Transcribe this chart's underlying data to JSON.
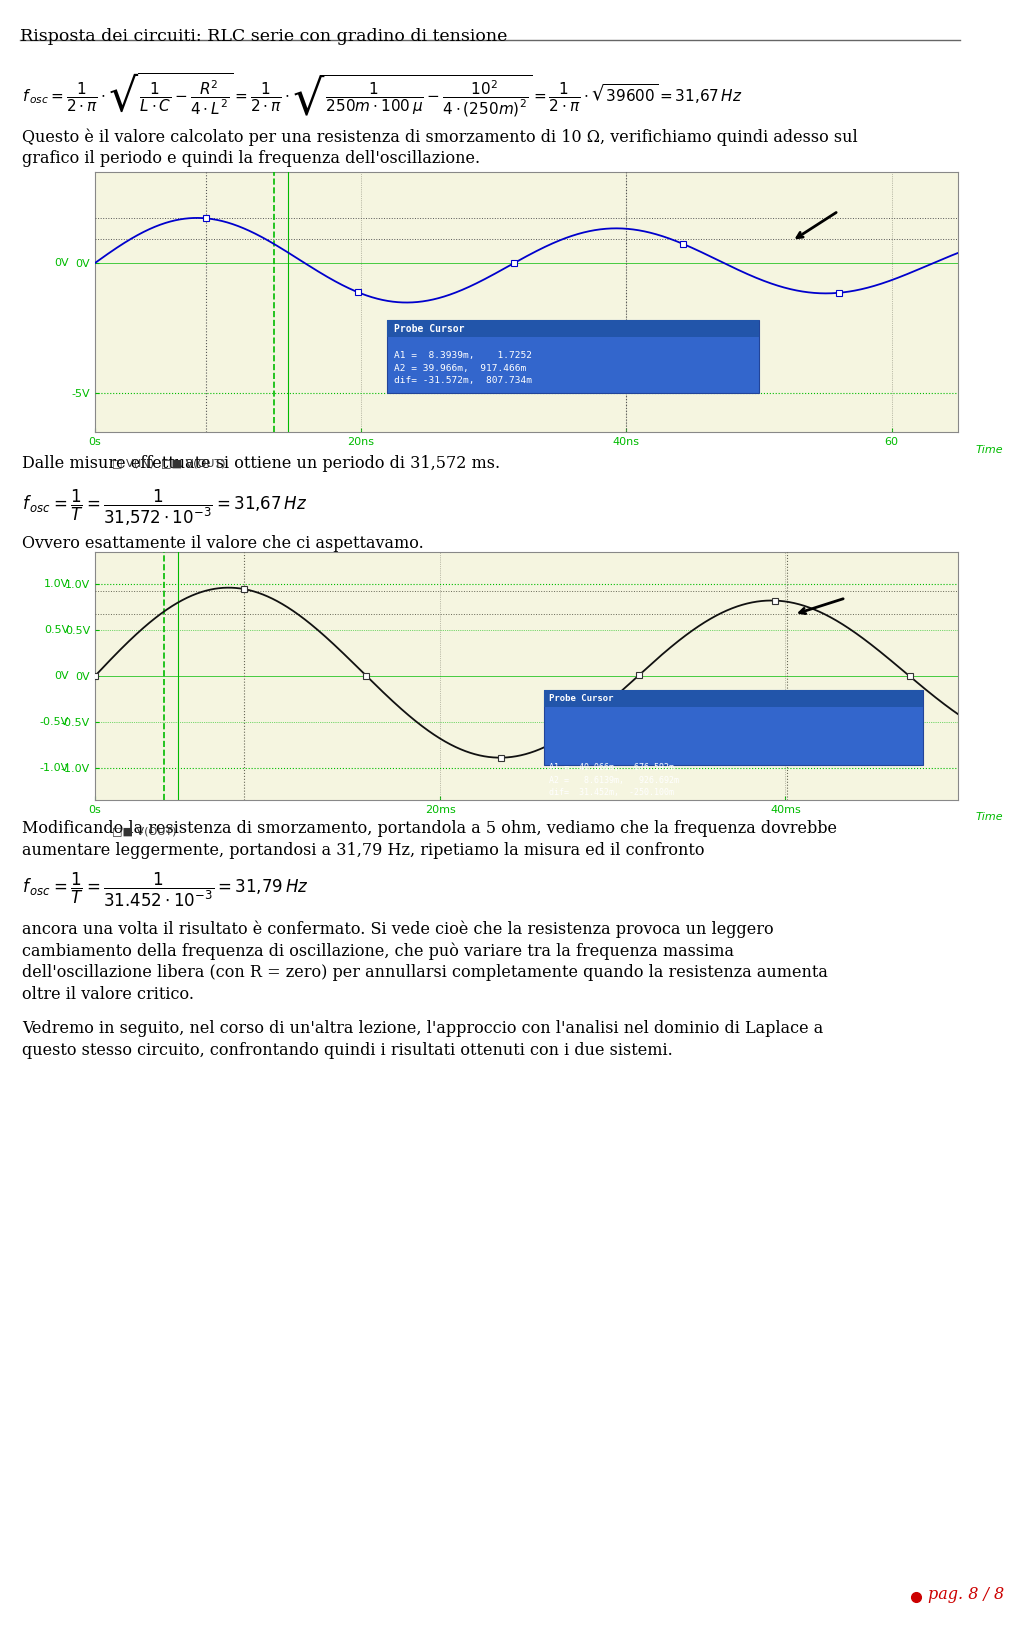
{
  "title": "Risposta dei circuiti: RLC serie con gradino di tensione",
  "bg": "#ffffff",
  "page_label": "pag. 8 / 8",
  "page_label_color": "#cc0000",
  "text_color": "#000000",
  "serif": "DejaVu Serif",
  "plot1_bg": "#f5f5e0",
  "plot1_wave_color": "#0000cc",
  "plot1_grid_color": "#00bb00",
  "plot1_tick_color": "#00bb00",
  "plot1_label_color": "#00bb00",
  "plot1_cursor_color": "#555555",
  "plot1_probe_bg": "#3366cc",
  "plot1_probe_fg": "#ffffff",
  "plot1_probe_title_bg": "#2255aa",
  "plot2_bg": "#f5f5e0",
  "plot2_wave_color": "#111111",
  "plot2_grid_color": "#00bb00",
  "plot2_tick_color": "#00bb00",
  "plot2_label_color": "#00bb00",
  "plot2_cursor_color": "#555555",
  "plot2_probe_bg": "#3366cc",
  "plot2_probe_fg": "#ffffff",
  "probe1_title": "Probe Cursor",
  "probe1_lines": [
    "A1 =  8.3939m,    1.7252",
    "A2 = 39.966m,  917.466m",
    "dif= -31.572m,  807.734m"
  ],
  "probe2_title": "Probe Cursor",
  "probe2_lines": [
    "A1 =  40.066m,   676.592m",
    "A2 =   8.6139m,   926.692m",
    "dif=  31.452m,  -250.100m"
  ],
  "legend1": "□ V(IN)  □■ V(OUT)",
  "legend2": "□■ V(OUT)",
  "text1a": "Questo è il valore calcolato per una resistenza di smorzamento di 10 Ω, verifichiamo quindi adesso sul",
  "text1b": "grafico il periodo e quindi la frequenza dell'oscillazione.",
  "text2": "Dalle misure effettuate si ottiene un periodo di 31,572 ms.",
  "text3": "Ovvero esattamente il valore che ci aspettavamo.",
  "text4a": "Modificando la resistenza di smorzamento, portandola a 5 ohm, vediamo che la frequenza dovrebbe",
  "text4b": "aumentare leggermente, portandosi a 31,79 Hz, ripetiamo la misura ed il confronto",
  "text5a": "ancora una volta il risultato è confermato. Si vede cioè che la resistenza provoca un leggero",
  "text5b": "cambiamento della frequenza di oscillazione, che può variare tra la frequenza massima",
  "text5c": "dell'oscillazione libera (con R = zero) per annullarsi completamente quando la resistenza aumenta",
  "text5d": "oltre il valore critico.",
  "text6a": "Vedremo in seguito, nel corso di un'altra lezione, l'approccio con l'analisi nel dominio di Laplace a",
  "text6b": "questo stesso circuito, confrontando quindi i risultati ottenuti con i due sistemi."
}
